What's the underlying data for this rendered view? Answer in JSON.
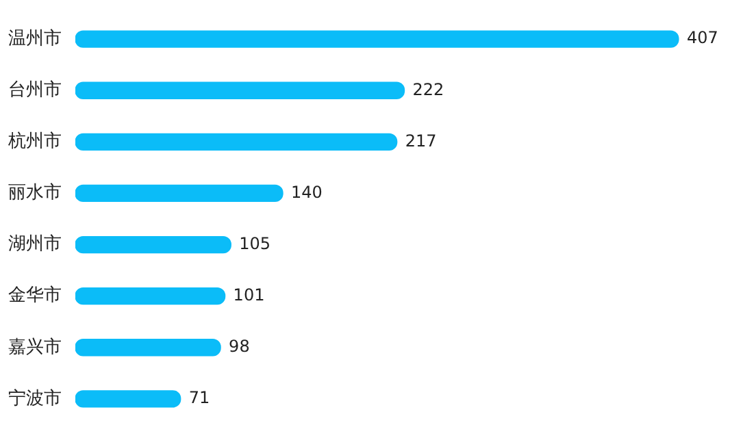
{
  "chart_data": {
    "type": "bar",
    "orientation": "horizontal",
    "categories": [
      "温州市",
      "台州市",
      "杭州市",
      "丽水市",
      "湖州市",
      "金华市",
      "嘉兴市",
      "宁波市"
    ],
    "values": [
      407,
      222,
      217,
      140,
      105,
      101,
      98,
      71
    ],
    "color": "#0bbcf8",
    "data_labels": true,
    "legend": false
  }
}
